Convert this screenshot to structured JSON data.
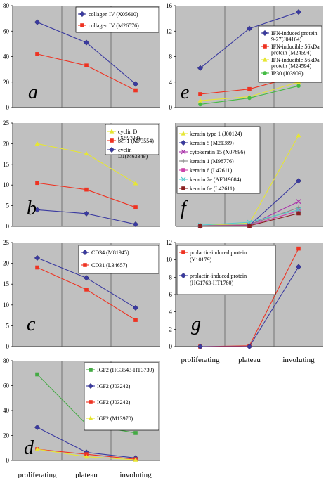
{
  "chart_data": [
    {
      "type": "line",
      "panel_letter": "a",
      "categories": [
        "proliferating",
        "plateau",
        "involuting"
      ],
      "ylim": [
        0,
        80
      ],
      "yticks": [
        0,
        20,
        40,
        60,
        80
      ],
      "series": [
        {
          "name": "collagen IV (X05610)",
          "color": "#3a3aa0",
          "marker": "diamond",
          "values": [
            67,
            51,
            18.5
          ]
        },
        {
          "name": "collagen IV (M26576)",
          "color": "#ee3322",
          "marker": "square",
          "values": [
            42,
            33,
            13.5
          ]
        }
      ]
    },
    {
      "type": "line",
      "panel_letter": "e",
      "categories": [
        "proliferating",
        "plateau",
        "involuting"
      ],
      "ylim": [
        0,
        16
      ],
      "yticks": [
        0,
        4,
        8,
        12,
        16
      ],
      "series": [
        {
          "name": "IFN-induced protein 9-27(J04164)",
          "color": "#3a3aa0",
          "marker": "diamond",
          "values": [
            6.2,
            12.4,
            15
          ]
        },
        {
          "name": "IFN-inducible 56kDa protein (M24594)",
          "color": "#ee3322",
          "marker": "square",
          "values": [
            2.1,
            2.9,
            5
          ]
        },
        {
          "name": "IFN-inducible 56kDa protein (M24594)",
          "color": "#e6e633",
          "marker": "triangle",
          "values": [
            1.1,
            1.7,
            4
          ]
        },
        {
          "name": "IP30 (J03909)",
          "color": "#44bb44",
          "marker": "circle",
          "values": [
            0.5,
            1.5,
            3.4
          ]
        }
      ]
    },
    {
      "type": "line",
      "panel_letter": "b",
      "categories": [
        "proliferating",
        "plateau",
        "involuting"
      ],
      "ylim": [
        0,
        25
      ],
      "yticks": [
        0,
        5,
        10,
        15,
        20,
        25
      ],
      "series": [
        {
          "name": "cyclin D (X59798)",
          "color": "#e6e633",
          "marker": "triangle",
          "values": [
            20,
            17.6,
            10.4
          ]
        },
        {
          "name": "bcl-1 (M73554)",
          "color": "#ee3322",
          "marker": "square",
          "values": [
            10.5,
            8.9,
            4.6
          ]
        },
        {
          "name": "cyclin D1(M63349)",
          "color": "#3a3aa0",
          "marker": "diamond",
          "values": [
            4,
            3.1,
            0.5
          ]
        }
      ]
    },
    {
      "type": "line",
      "panel_letter": "f",
      "categories": [
        "proliferating",
        "plateau",
        "involuting"
      ],
      "ylim": [
        0,
        50
      ],
      "yticks": [],
      "series": [
        {
          "name": "keratin type 1 (J00124)",
          "color": "#e6e633",
          "marker": "triangle",
          "values": [
            0.5,
            1.5,
            44
          ]
        },
        {
          "name": "keratin 5 (M21389)",
          "color": "#3a3aa0",
          "marker": "diamond",
          "values": [
            0.2,
            0.4,
            22
          ]
        },
        {
          "name": "cytokeratin 15 (X07696)",
          "color": "#aa33aa",
          "marker": "x",
          "values": [
            0.3,
            0.6,
            12
          ]
        },
        {
          "name": "keratin 1 (M98776)",
          "color": "#888888",
          "marker": "plus",
          "values": [
            0.4,
            0.8,
            9
          ]
        },
        {
          "name": "keratin 6 (L42611)",
          "color": "#cc44aa",
          "marker": "square",
          "values": [
            0.2,
            0.5,
            7.5
          ]
        },
        {
          "name": "keratin 2e (AF019084)",
          "color": "#55cccc",
          "marker": "x",
          "values": [
            0.6,
            2,
            8
          ]
        },
        {
          "name": "keratin 6e (L42611)",
          "color": "#8a2020",
          "marker": "square",
          "values": [
            0.1,
            0.3,
            6.3
          ]
        }
      ]
    },
    {
      "type": "line",
      "panel_letter": "c",
      "categories": [
        "proliferating",
        "plateau",
        "involuting"
      ],
      "ylim": [
        0,
        25
      ],
      "yticks": [
        0,
        5,
        10,
        15,
        20,
        25
      ],
      "series": [
        {
          "name": "CD34 (M81945)",
          "color": "#3a3aa0",
          "marker": "diamond",
          "values": [
            21.3,
            16.5,
            9.3
          ]
        },
        {
          "name": "CD31 (L34657)",
          "color": "#ee3322",
          "marker": "square",
          "values": [
            19,
            13.7,
            6.4
          ]
        }
      ]
    },
    {
      "type": "line",
      "panel_letter": "g",
      "categories": [
        "proliferating",
        "plateau",
        "involuting"
      ],
      "ylim": [
        0,
        12
      ],
      "yticks": [
        0,
        2,
        4,
        6,
        8,
        10,
        12
      ],
      "series": [
        {
          "name": "prolactin-induced protein (Y10179)",
          "color": "#ee3322",
          "marker": "square",
          "values": [
            0,
            0.1,
            11.3
          ]
        },
        {
          "name": "prolactin-induced protein (HG1763-HT1780)",
          "color": "#3a3aa0",
          "marker": "diamond",
          "values": [
            0,
            0,
            9.2
          ]
        }
      ]
    },
    {
      "type": "line",
      "panel_letter": "d",
      "categories": [
        "proliferating",
        "plateau",
        "involuting"
      ],
      "ylim": [
        0,
        80
      ],
      "yticks": [
        0,
        20,
        40,
        60,
        80
      ],
      "series": [
        {
          "name": "IGF2 (HG3543-HT3739)",
          "color": "#44aa44",
          "marker": "square",
          "values": [
            69,
            29,
            22
          ]
        },
        {
          "name": "IGF2 (J03242)",
          "color": "#3a3aa0",
          "marker": "diamond",
          "values": [
            26.5,
            6.5,
            2
          ]
        },
        {
          "name": "IGF2 (J03242)",
          "color": "#ee3322",
          "marker": "square",
          "values": [
            9,
            5,
            1
          ]
        },
        {
          "name": "IGF2 (M13970)",
          "color": "#e6e633",
          "marker": "triangle",
          "values": [
            9,
            3,
            0.5
          ]
        }
      ]
    }
  ]
}
